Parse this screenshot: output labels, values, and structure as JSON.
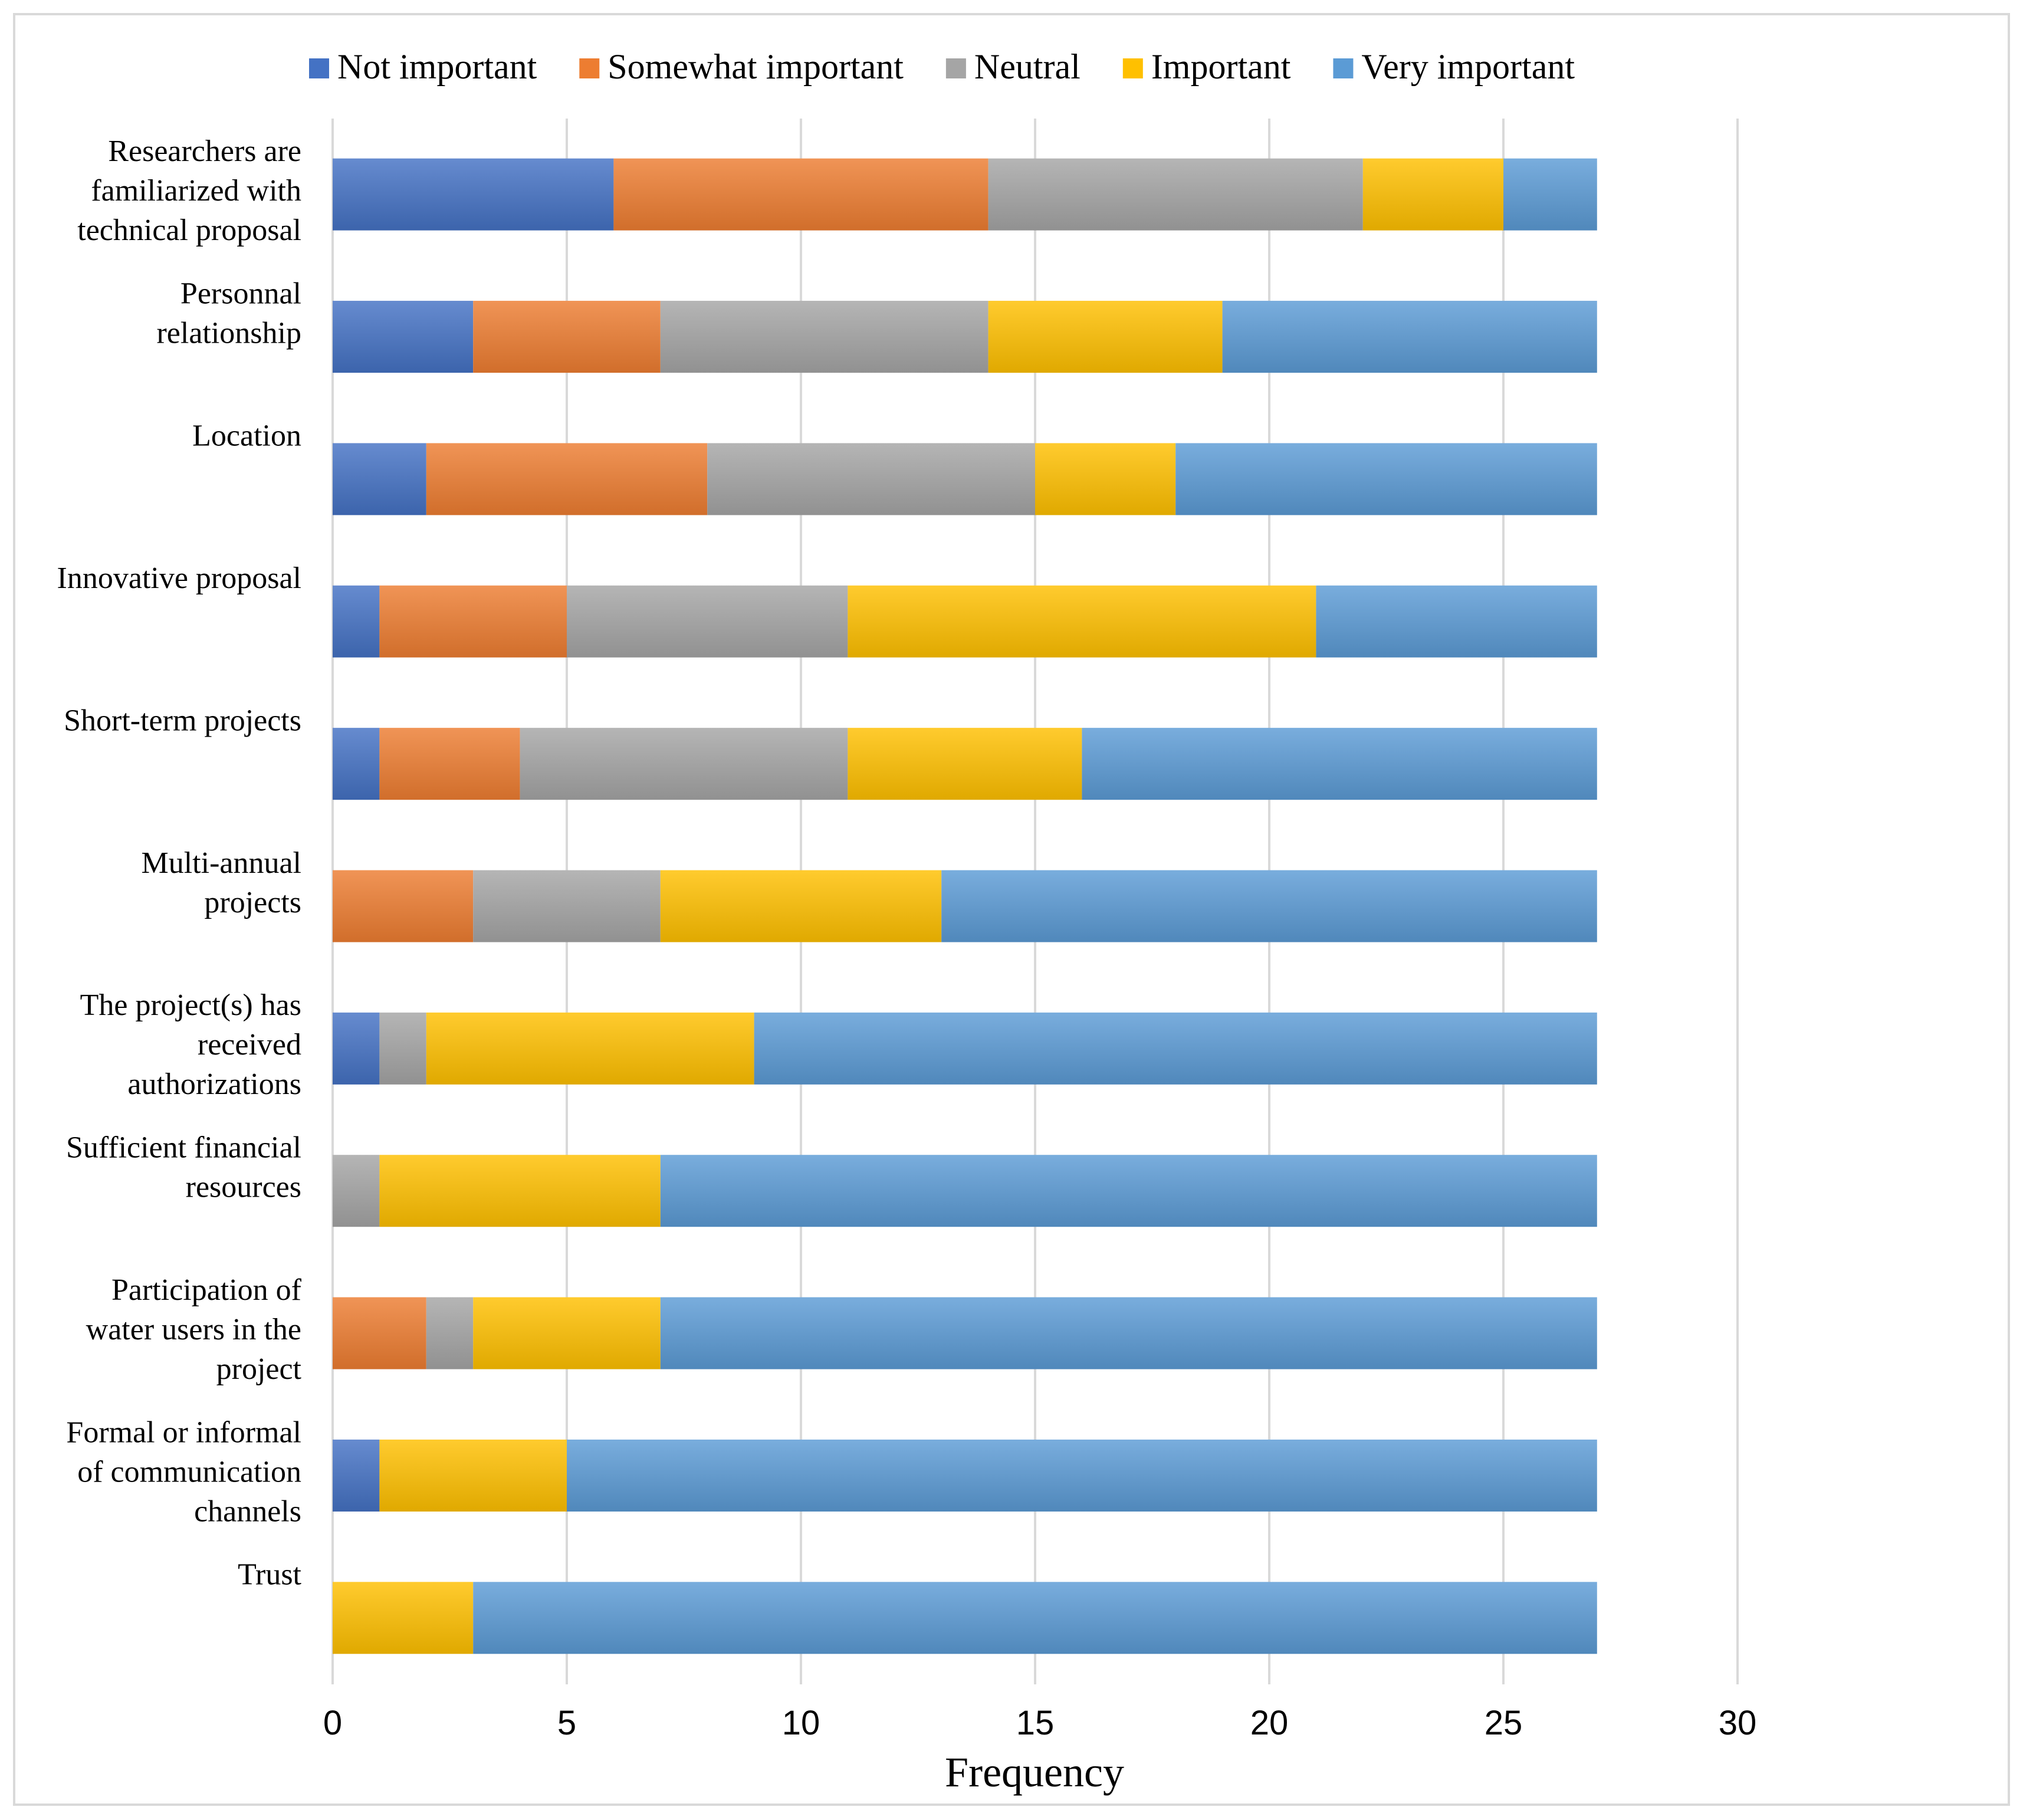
{
  "chart_data": {
    "type": "bar",
    "orientation": "horizontal",
    "stacked": true,
    "title": "",
    "xlabel": "Frequency",
    "ylabel": "",
    "xlim": [
      0,
      30
    ],
    "x_ticks": [
      "0",
      "5",
      "10",
      "15",
      "20",
      "25",
      "30"
    ],
    "grid": true,
    "legend_position": "top",
    "categories": [
      "Researchers are familiarized with technical proposal",
      "Personnal relationship",
      "Location",
      "Innovative proposal",
      "Short-term projects",
      "Multi-annual projects",
      "The project(s) has received authorizations",
      "Sufficient financial resources",
      "Participation of water users in the project",
      "Formal or informal of communication channels",
      "Trust"
    ],
    "category_label_lines": [
      [
        "Researchers are",
        "familiarized with",
        "technical proposal"
      ],
      [
        "Personnal",
        "relationship"
      ],
      [
        "Location"
      ],
      [
        "Innovative proposal"
      ],
      [
        "Short-term projects"
      ],
      [
        "Multi-annual",
        "projects"
      ],
      [
        "The project(s) has",
        "received",
        "authorizations"
      ],
      [
        "Sufficient financial",
        "resources"
      ],
      [
        "Participation of",
        "water users in the",
        "project"
      ],
      [
        "Formal or informal",
        "of communication",
        "channels"
      ],
      [
        "Trust"
      ]
    ],
    "series": [
      {
        "name": "Not important",
        "color": "#4472C4",
        "values": [
          6,
          3,
          2,
          1,
          1,
          0,
          1,
          0,
          0,
          1,
          0
        ]
      },
      {
        "name": "Somewhat important",
        "color": "#ED7D31",
        "values": [
          8,
          4,
          6,
          4,
          3,
          3,
          0,
          0,
          2,
          0,
          0
        ]
      },
      {
        "name": "Neutral",
        "color": "#A5A5A5",
        "values": [
          8,
          7,
          7,
          6,
          7,
          4,
          1,
          1,
          1,
          0,
          0
        ]
      },
      {
        "name": "Important",
        "color": "#FFC000",
        "values": [
          3,
          5,
          3,
          10,
          5,
          6,
          7,
          6,
          4,
          4,
          3
        ]
      },
      {
        "name": "Very important",
        "color": "#5B9BD5",
        "values": [
          2,
          8,
          9,
          6,
          11,
          14,
          18,
          20,
          20,
          22,
          24
        ]
      }
    ]
  }
}
